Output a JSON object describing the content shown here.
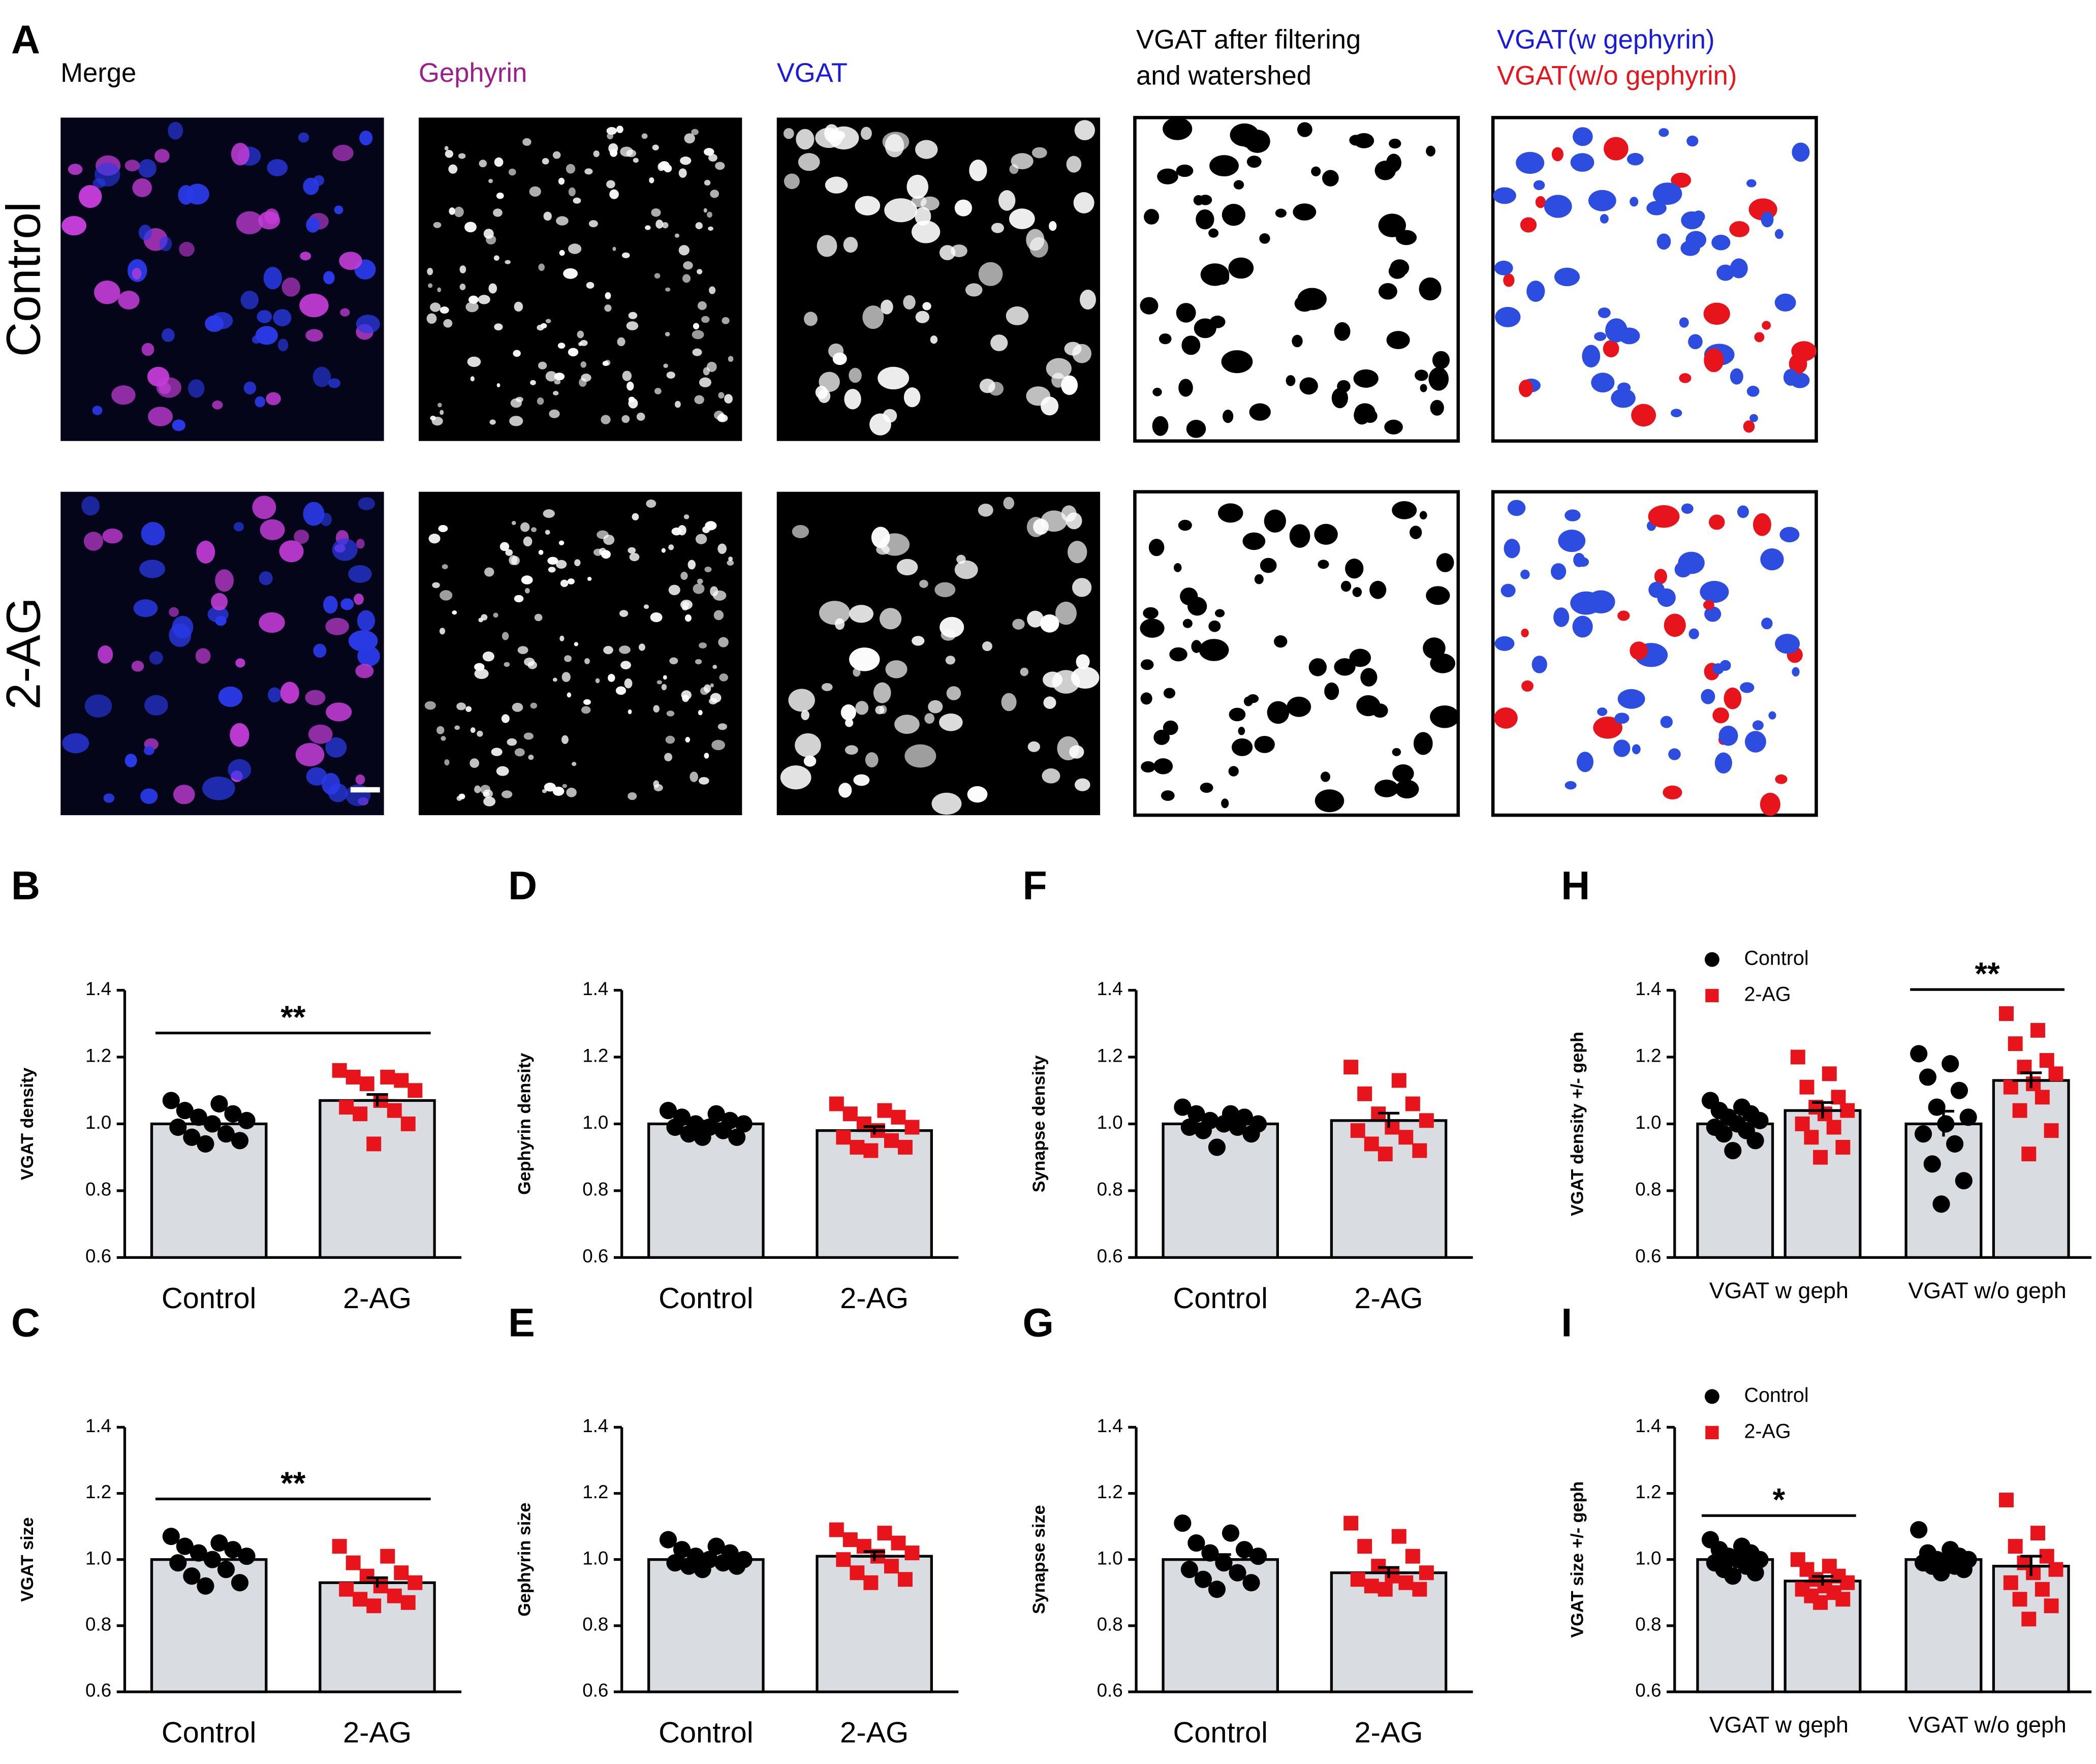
{
  "figure": {
    "panel_label": "A",
    "image_titles": [
      "Merge",
      "Gephyrin",
      "VGAT",
      "VGAT after filtering",
      "and watershed",
      "VGAT(w gephyrin)",
      "VGAT(w/o gephyrin)"
    ],
    "row_labels": [
      "Control",
      "2-AG"
    ]
  },
  "chart_data": [
    {
      "type": "bar",
      "panel": "B",
      "ylabel": "VGAT density",
      "categories": [
        "Control",
        "2-AG"
      ],
      "values": [
        1.0,
        1.07
      ],
      "errors": [
        0.013,
        0.018
      ],
      "points": [
        [
          1.07,
          1.06,
          1.04,
          1.03,
          1.02,
          1.01,
          1.0,
          0.99,
          0.97,
          0.96,
          0.95,
          0.94
        ],
        [
          1.16,
          1.14,
          1.14,
          1.13,
          1.12,
          1.1,
          1.07,
          1.05,
          1.04,
          1.03,
          1.0,
          0.94
        ]
      ],
      "point_colors": [
        "#000000",
        "#e8141b"
      ],
      "point_markers": [
        "circle",
        "square"
      ],
      "bar_color": "#d9dce1",
      "ylim": [
        0.6,
        1.4
      ],
      "yticks": [
        0.6,
        0.8,
        {
          "value": 1.0,
          "label": "1.0"
        },
        1.2,
        1.4
      ],
      "significance": {
        "label": "**"
      }
    },
    {
      "type": "bar",
      "panel": "C",
      "ylabel": "VGAT size",
      "categories": [
        "Control",
        "2-AG"
      ],
      "values": [
        1.0,
        0.93
      ],
      "errors": [
        0.012,
        0.015
      ],
      "points": [
        [
          1.07,
          1.05,
          1.04,
          1.03,
          1.02,
          1.01,
          1.0,
          0.99,
          0.97,
          0.95,
          0.93,
          0.92
        ],
        [
          1.04,
          1.01,
          0.99,
          0.96,
          0.95,
          0.93,
          0.92,
          0.91,
          0.89,
          0.88,
          0.87,
          0.86
        ]
      ],
      "point_colors": [
        "#000000",
        "#e8141b"
      ],
      "point_markers": [
        "circle",
        "square"
      ],
      "bar_color": "#d9dce1",
      "ylim": [
        0.6,
        1.4
      ],
      "yticks": [
        0.6,
        0.8,
        {
          "value": 1.0,
          "label": "1.0"
        },
        1.2,
        1.4
      ],
      "significance": {
        "label": "**"
      }
    },
    {
      "type": "bar",
      "panel": "D",
      "ylabel": "Gephyrin density",
      "categories": [
        "Control",
        "2-AG"
      ],
      "values": [
        1.0,
        0.98
      ],
      "errors": [
        0.008,
        0.012
      ],
      "points": [
        [
          1.04,
          1.03,
          1.02,
          1.01,
          1.0,
          1.0,
          0.99,
          0.99,
          0.98,
          0.97,
          0.96,
          0.96
        ],
        [
          1.06,
          1.04,
          1.03,
          1.02,
          1.0,
          0.99,
          0.98,
          0.96,
          0.95,
          0.93,
          0.93,
          0.92
        ]
      ],
      "point_colors": [
        "#000000",
        "#e8141b"
      ],
      "point_markers": [
        "circle",
        "square"
      ],
      "bar_color": "#d9dce1",
      "ylim": [
        0.6,
        1.4
      ],
      "yticks": [
        0.6,
        0.8,
        {
          "value": 1.0,
          "label": "1.0"
        },
        1.2,
        1.4
      ]
    },
    {
      "type": "bar",
      "panel": "E",
      "ylabel": "Gephyrin size",
      "categories": [
        "Control",
        "2-AG"
      ],
      "values": [
        1.0,
        1.01
      ],
      "errors": [
        0.008,
        0.014
      ],
      "points": [
        [
          1.06,
          1.04,
          1.03,
          1.02,
          1.01,
          1.0,
          1.0,
          0.99,
          0.99,
          0.98,
          0.98,
          0.97
        ],
        [
          1.09,
          1.08,
          1.06,
          1.05,
          1.04,
          1.02,
          1.01,
          1.0,
          0.98,
          0.96,
          0.94,
          0.93
        ]
      ],
      "point_colors": [
        "#000000",
        "#e8141b"
      ],
      "point_markers": [
        "circle",
        "square"
      ],
      "bar_color": "#d9dce1",
      "ylim": [
        0.6,
        1.4
      ],
      "yticks": [
        0.6,
        0.8,
        {
          "value": 1.0,
          "label": "1.0"
        },
        1.2,
        1.4
      ]
    },
    {
      "type": "bar",
      "panel": "F",
      "ylabel": "Synapse density",
      "categories": [
        "Control",
        "2-AG"
      ],
      "values": [
        1.0,
        1.01
      ],
      "errors": [
        0.009,
        0.022
      ],
      "points": [
        [
          1.05,
          1.03,
          1.03,
          1.02,
          1.01,
          1.0,
          1.0,
          0.99,
          0.99,
          0.98,
          0.97,
          0.93
        ],
        [
          1.17,
          1.13,
          1.09,
          1.06,
          1.03,
          1.01,
          0.99,
          0.98,
          0.96,
          0.94,
          0.92,
          0.91
        ]
      ],
      "point_colors": [
        "#000000",
        "#e8141b"
      ],
      "point_markers": [
        "circle",
        "square"
      ],
      "bar_color": "#d9dce1",
      "ylim": [
        0.6,
        1.4
      ],
      "yticks": [
        0.6,
        0.8,
        {
          "value": 1.0,
          "label": "1.0"
        },
        1.2,
        1.4
      ]
    },
    {
      "type": "bar",
      "panel": "G",
      "ylabel": "Synapse size",
      "categories": [
        "Control",
        "2-AG"
      ],
      "values": [
        1.0,
        0.96
      ],
      "errors": [
        0.015,
        0.016
      ],
      "points": [
        [
          1.11,
          1.08,
          1.05,
          1.03,
          1.02,
          1.01,
          0.99,
          0.97,
          0.96,
          0.94,
          0.93,
          0.91
        ],
        [
          1.11,
          1.07,
          1.04,
          1.01,
          0.98,
          0.96,
          0.95,
          0.94,
          0.93,
          0.92,
          0.91,
          0.91
        ]
      ],
      "point_colors": [
        "#000000",
        "#e8141b"
      ],
      "point_markers": [
        "circle",
        "square"
      ],
      "bar_color": "#d9dce1",
      "ylim": [
        0.6,
        1.4
      ],
      "yticks": [
        0.6,
        0.8,
        {
          "value": 1.0,
          "label": "1.0"
        },
        1.2,
        1.4
      ]
    },
    {
      "type": "bar",
      "panel": "H",
      "ylabel": "VGAT density +/- geph",
      "categories": [
        "VGAT w geph",
        "VGAT w/o geph"
      ],
      "bar_color": "#d9dce1",
      "legend": "upper left",
      "series": [
        {
          "name": "Control",
          "color": "#000000",
          "marker": "circle",
          "values": [
            1.0,
            1.0
          ],
          "errors": [
            0.012,
            0.038
          ],
          "points": [
            [
              1.07,
              1.05,
              1.04,
              1.03,
              1.02,
              1.01,
              1.0,
              0.99,
              0.98,
              0.97,
              0.95,
              0.92
            ],
            [
              1.21,
              1.18,
              1.14,
              1.1,
              1.05,
              1.02,
              1.0,
              0.97,
              0.94,
              0.88,
              0.83,
              0.76
            ]
          ]
        },
        {
          "name": "2-AG",
          "color": "#e8141b",
          "marker": "square",
          "values": [
            1.04,
            1.13
          ],
          "errors": [
            0.024,
            0.023
          ],
          "points": [
            [
              1.2,
              1.15,
              1.11,
              1.08,
              1.05,
              1.04,
              1.03,
              1.0,
              0.99,
              0.96,
              0.93,
              0.9
            ],
            [
              1.33,
              1.28,
              1.24,
              1.19,
              1.17,
              1.15,
              1.12,
              1.11,
              1.08,
              1.04,
              0.98,
              0.91
            ]
          ]
        }
      ],
      "ylim": [
        0.6,
        1.4
      ],
      "yticks": [
        0.6,
        0.8,
        {
          "value": 1.0,
          "label": "1.0"
        },
        1.2,
        1.4
      ],
      "significance": {
        "label": "**",
        "category": 1
      }
    },
    {
      "type": "bar",
      "panel": "I",
      "ylabel": "VGAT size +/- geph",
      "categories": [
        "VGAT w geph",
        "VGAT w/o geph"
      ],
      "bar_color": "#d9dce1",
      "legend": "upper left",
      "series": [
        {
          "name": "Control",
          "color": "#000000",
          "marker": "circle",
          "values": [
            1.0,
            1.0
          ],
          "errors": [
            0.01,
            0.01
          ],
          "points": [
            [
              1.06,
              1.04,
              1.03,
              1.02,
              1.01,
              1.0,
              1.0,
              0.99,
              0.98,
              0.97,
              0.96,
              0.95
            ],
            [
              1.09,
              1.03,
              1.02,
              1.01,
              1.0,
              1.0,
              0.99,
              0.99,
              0.98,
              0.98,
              0.97,
              0.96
            ]
          ]
        },
        {
          "name": "2-AG",
          "color": "#e8141b",
          "marker": "square",
          "values": [
            0.935,
            0.98
          ],
          "errors": [
            0.014,
            0.03
          ],
          "points": [
            [
              1.0,
              0.98,
              0.97,
              0.95,
              0.94,
              0.93,
              0.92,
              0.91,
              0.9,
              0.89,
              0.88,
              0.87
            ],
            [
              1.18,
              1.08,
              1.04,
              1.01,
              0.99,
              0.97,
              0.96,
              0.93,
              0.91,
              0.88,
              0.86,
              0.82
            ]
          ]
        }
      ],
      "ylim": [
        0.6,
        1.4
      ],
      "yticks": [
        0.6,
        0.8,
        {
          "value": 1.0,
          "label": "1.0"
        },
        1.2,
        1.4
      ],
      "significance": {
        "label": "*",
        "category": 0
      }
    }
  ]
}
